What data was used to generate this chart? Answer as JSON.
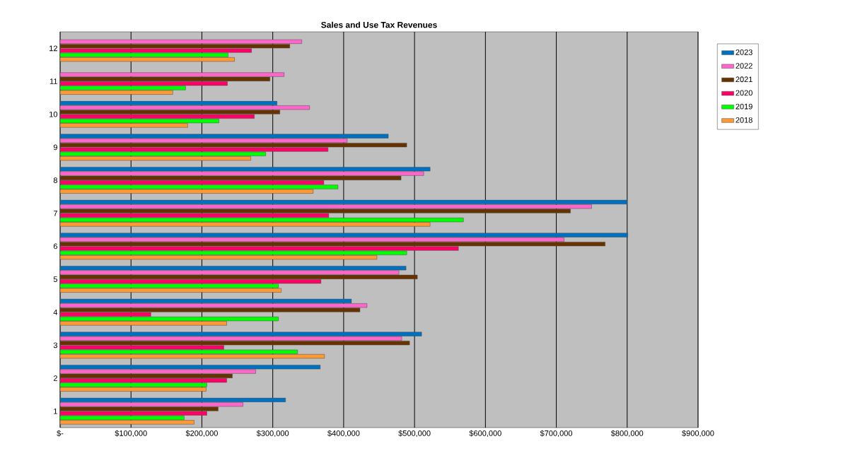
{
  "chart_data": {
    "type": "bar",
    "orientation": "horizontal",
    "title": "Sales and Use Tax Revenues",
    "categories": [
      "12",
      "11",
      "10",
      "9",
      "8",
      "7",
      "6",
      "5",
      "4",
      "3",
      "2",
      "1"
    ],
    "series": [
      {
        "name": "2023",
        "color": "#0070c0",
        "values": [
          null,
          null,
          306000,
          463000,
          522000,
          800000,
          801000,
          488000,
          411000,
          510000,
          367000,
          318000
        ]
      },
      {
        "name": "2022",
        "color": "#ff66cc",
        "values": [
          341000,
          316000,
          352000,
          405000,
          513000,
          750000,
          711000,
          478000,
          433000,
          482000,
          276000,
          258000
        ]
      },
      {
        "name": "2021",
        "color": "#663300",
        "values": [
          324000,
          296000,
          310000,
          489000,
          481000,
          720000,
          769000,
          504000,
          423000,
          493000,
          243000,
          223000
        ]
      },
      {
        "name": "2020",
        "color": "#ff0066",
        "values": [
          270000,
          236000,
          274000,
          378000,
          372000,
          379000,
          562000,
          368000,
          128000,
          231000,
          235000,
          207000
        ]
      },
      {
        "name": "2019",
        "color": "#00ff00",
        "values": [
          237000,
          177000,
          224000,
          290000,
          392000,
          569000,
          489000,
          308000,
          308000,
          335000,
          207000,
          175000
        ]
      },
      {
        "name": "2018",
        "color": "#ff9933",
        "values": [
          246000,
          159000,
          180000,
          269000,
          357000,
          522000,
          447000,
          312000,
          235000,
          373000,
          206000,
          189000
        ]
      }
    ],
    "xlim": [
      0,
      900000
    ],
    "xticks": [
      {
        "value": 0,
        "label": "$-"
      },
      {
        "value": 100000,
        "label": "$100,000"
      },
      {
        "value": 200000,
        "label": "$200,000"
      },
      {
        "value": 300000,
        "label": "$300,000"
      },
      {
        "value": 400000,
        "label": "$400,000"
      },
      {
        "value": 500000,
        "label": "$500,000"
      },
      {
        "value": 600000,
        "label": "$600,000"
      },
      {
        "value": 700000,
        "label": "$700,000"
      },
      {
        "value": 800000,
        "label": "$800,000"
      },
      {
        "value": 900000,
        "label": "$900,000"
      }
    ],
    "grid": "x",
    "legend": "top right"
  }
}
